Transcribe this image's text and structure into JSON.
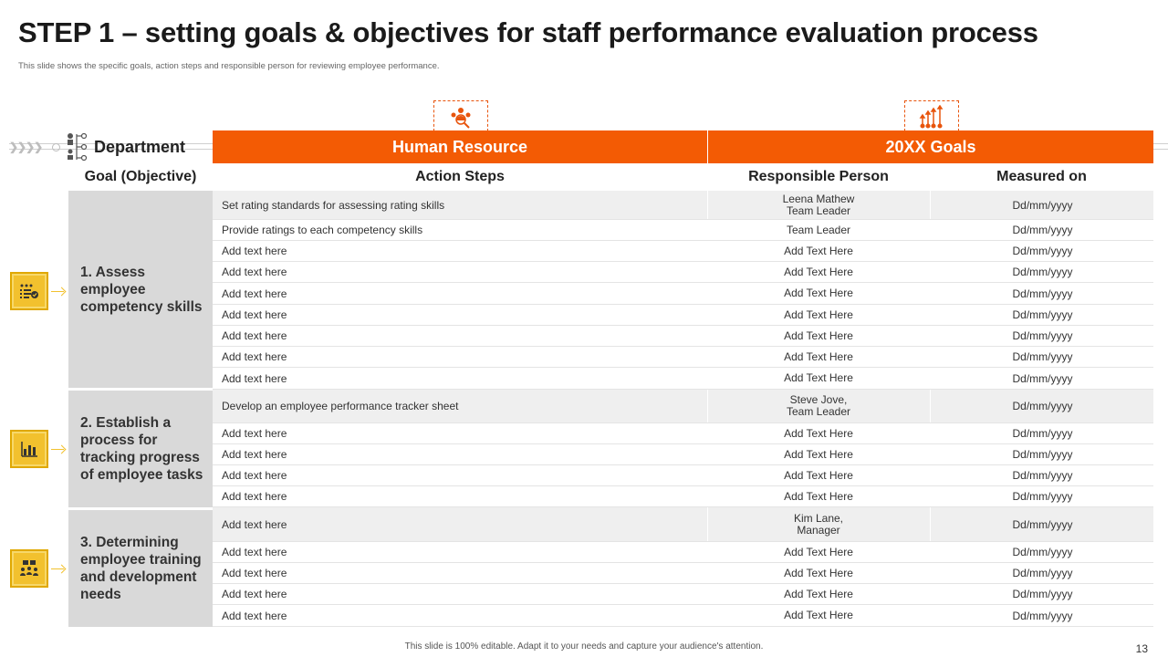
{
  "title": "STEP 1 – setting goals & objectives for staff performance evaluation process",
  "subtitle": "This slide shows the specific goals, action steps and responsible person for reviewing employee performance.",
  "department_label": "Department",
  "goal_header": "Goal (Objective)",
  "band": {
    "left": "Human Resource",
    "right": "20XX Goals"
  },
  "columns": {
    "action": "Action Steps",
    "person": "Responsible Person",
    "measured": "Measured on"
  },
  "goals": [
    "1. Assess employee competency skills",
    "2. Establish a process for tracking progress of employee tasks",
    "3. Determining employee training and development needs"
  ],
  "rows": [
    {
      "action": "Set rating standards for assessing rating skills",
      "person": "Leena Mathew\nTeam Leader",
      "measured": "Dd/mm/yyyy"
    },
    {
      "action": "Provide ratings to each competency skills",
      "person": "Team Leader",
      "measured": "Dd/mm/yyyy"
    },
    {
      "action": "Add text here",
      "person": "Add Text Here",
      "measured": "Dd/mm/yyyy"
    },
    {
      "action": "Add text here",
      "person": "Add Text Here",
      "measured": "Dd/mm/yyyy"
    },
    {
      "action": "Add text here",
      "person": "Add Text Here",
      "measured": "Dd/mm/yyyy"
    },
    {
      "action": "Add text here",
      "person": "Add Text Here",
      "measured": "Dd/mm/yyyy"
    },
    {
      "action": "Add text here",
      "person": "Add Text Here",
      "measured": "Dd/mm/yyyy"
    },
    {
      "action": "Add text here",
      "person": "Add Text Here",
      "measured": "Dd/mm/yyyy"
    },
    {
      "action": "Add text here",
      "person": "Add Text Here",
      "measured": "Dd/mm/yyyy"
    },
    {
      "action": "Develop an employee performance tracker sheet",
      "person": "Steve Jove,\nTeam Leader",
      "measured": "Dd/mm/yyyy"
    },
    {
      "action": "Add text here",
      "person": "Add Text Here",
      "measured": "Dd/mm/yyyy"
    },
    {
      "action": "Add text here",
      "person": "Add Text Here",
      "measured": "Dd/mm/yyyy"
    },
    {
      "action": "Add text here",
      "person": "Add Text Here",
      "measured": "Dd/mm/yyyy"
    },
    {
      "action": "Add text here",
      "person": "Add Text Here",
      "measured": "Dd/mm/yyyy"
    },
    {
      "action": "Add text here",
      "person": "Kim Lane,\nManager",
      "measured": "Dd/mm/yyyy"
    },
    {
      "action": "Add text here",
      "person": "Add Text Here",
      "measured": "Dd/mm/yyyy"
    },
    {
      "action": "Add text here",
      "person": "Add Text Here",
      "measured": "Dd/mm/yyyy"
    },
    {
      "action": "Add text here",
      "person": "Add Text Here",
      "measured": "Dd/mm/yyyy"
    },
    {
      "action": "Add text here",
      "person": "Add Text Here",
      "measured": "Dd/mm/yyyy"
    }
  ],
  "icons": {
    "header_left": "team-search-icon",
    "header_right": "growth-arrows-icon",
    "department": "org-chart-icon",
    "goal_1": "checklist-icon",
    "goal_2": "bar-chart-icon",
    "goal_3": "training-group-icon"
  },
  "colors": {
    "accent": "#f35b04",
    "goal_icon": "#f2c12e",
    "goal_panel": "#d9d9d9",
    "row_shade": "#efefef"
  },
  "footer": "This slide is 100% editable. Adapt it to your needs and capture your audience's attention.",
  "page_number": "13"
}
